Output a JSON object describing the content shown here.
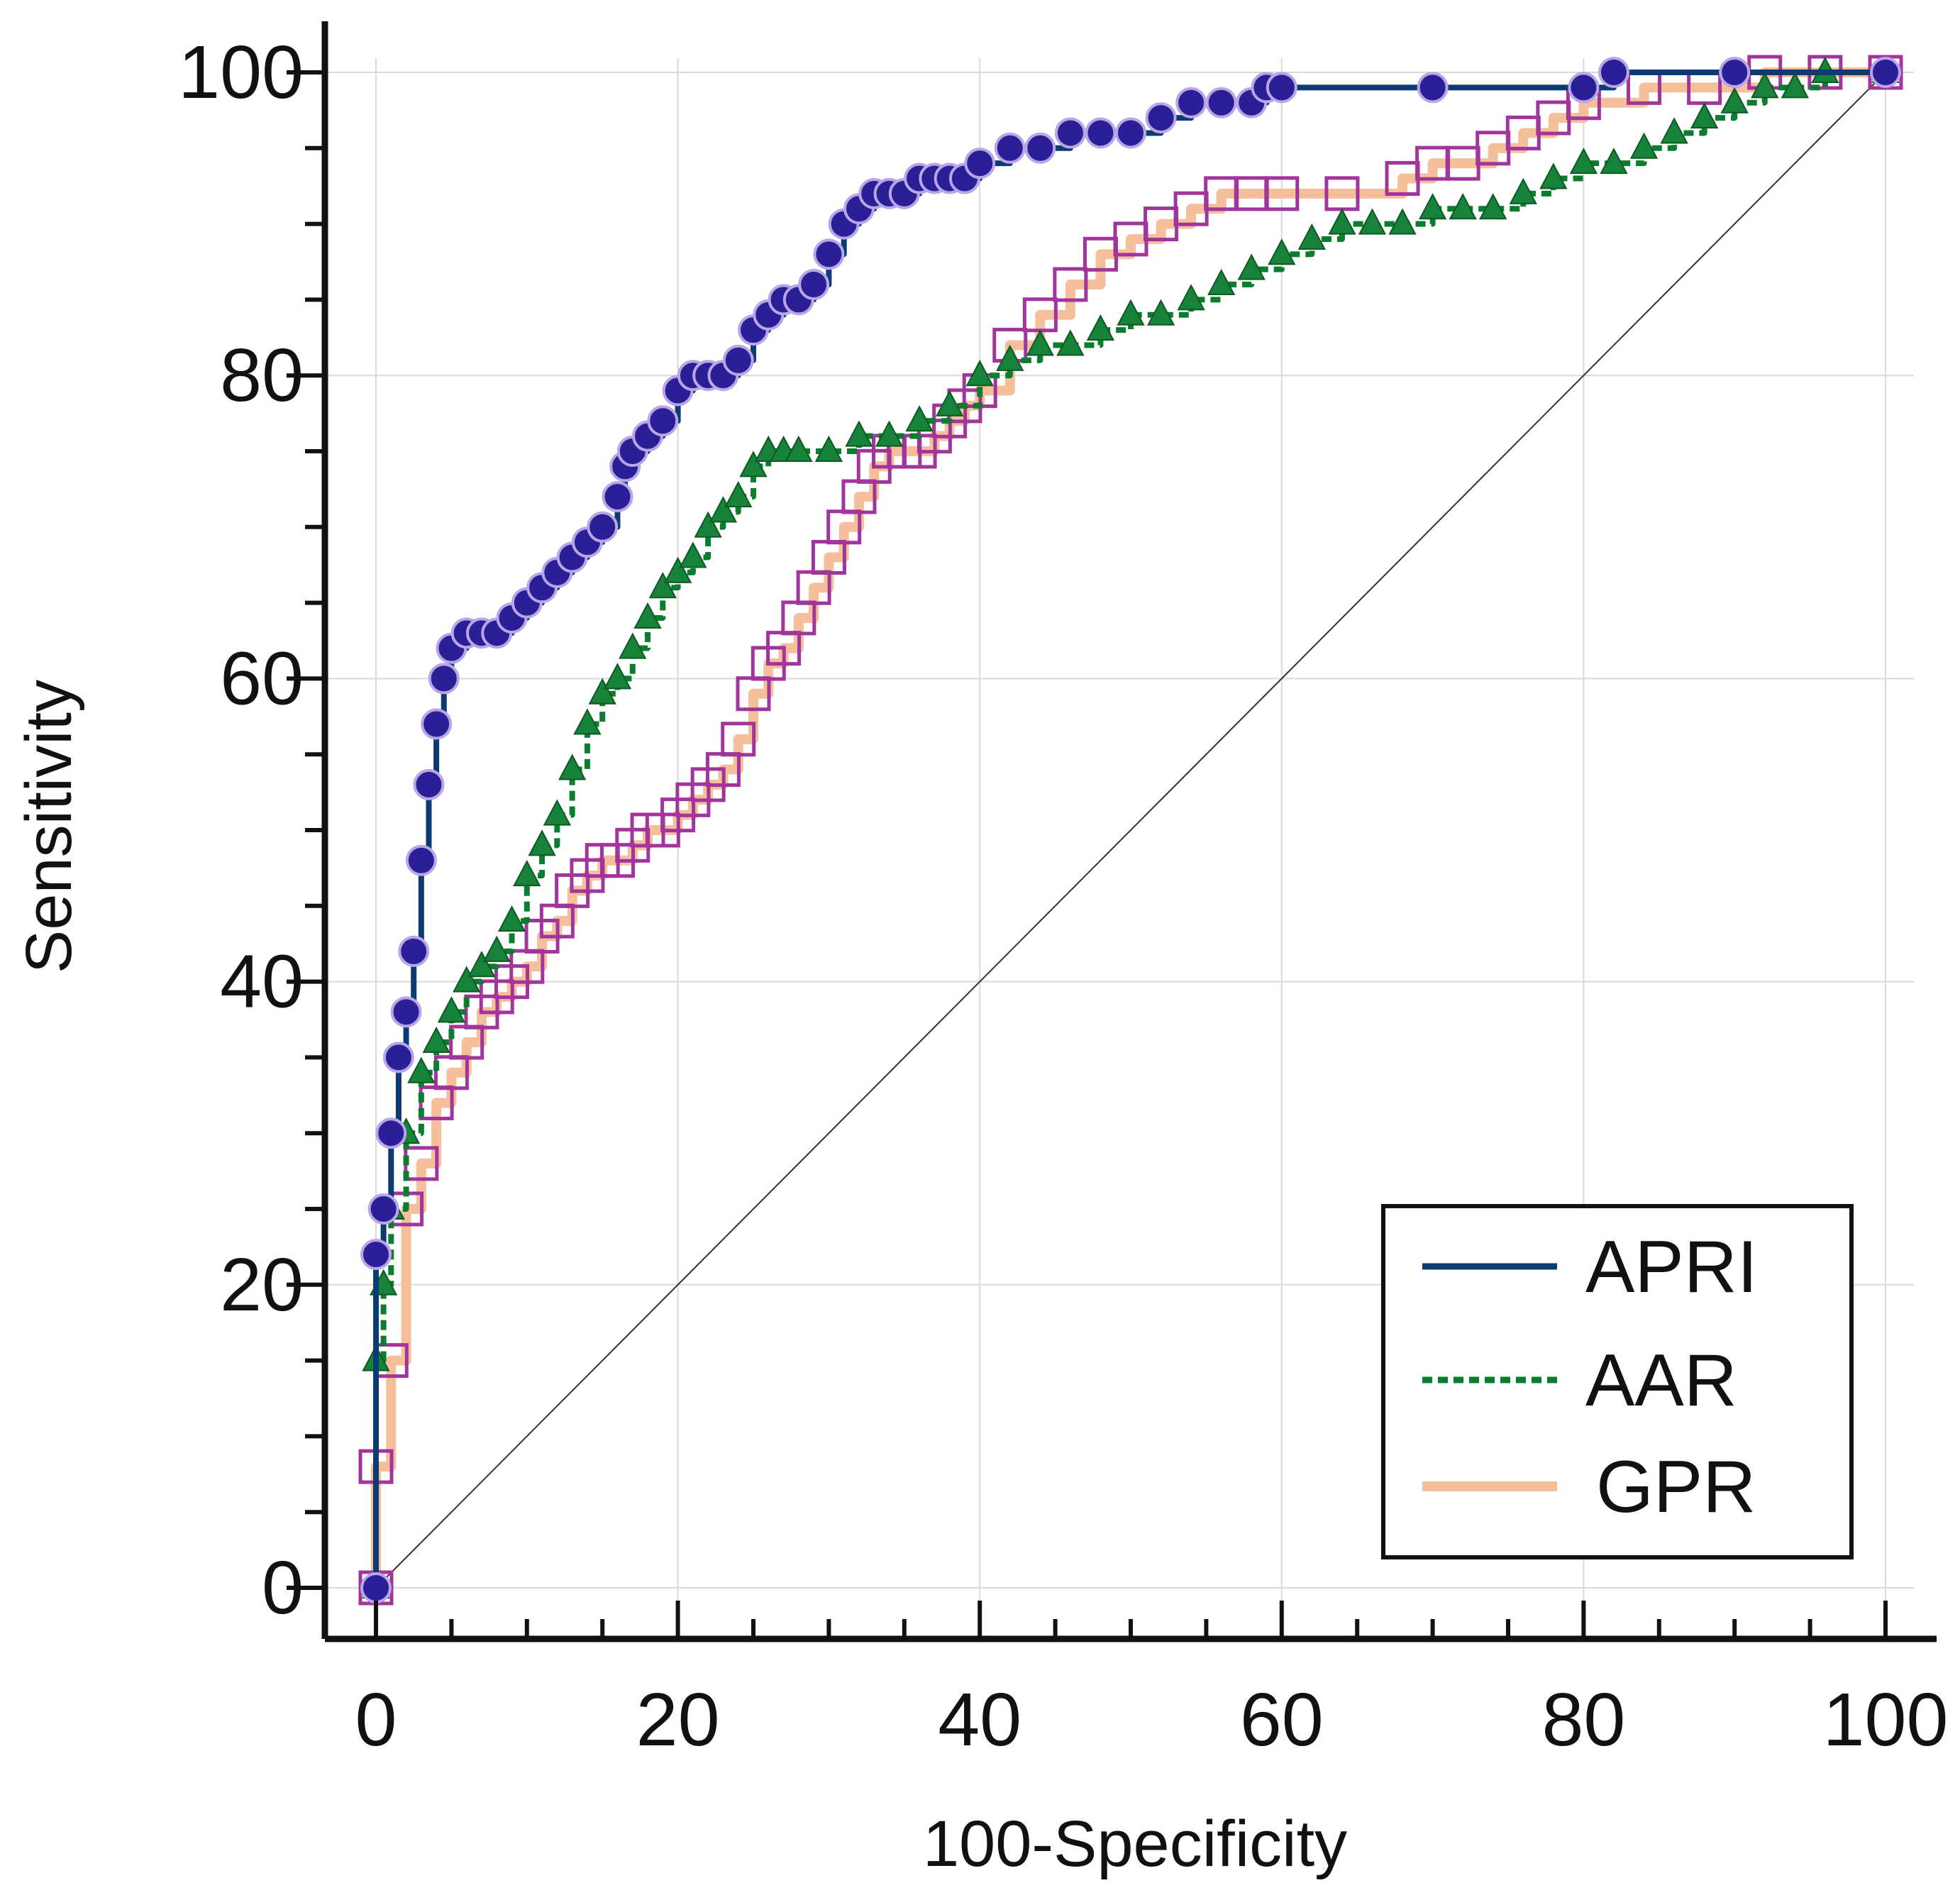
{
  "chart_data": {
    "type": "line",
    "title": "",
    "xlabel": "100-Specificity",
    "ylabel": "Sensitivity",
    "xlim": [
      0,
      100
    ],
    "ylim": [
      0,
      100
    ],
    "xticks": [
      "0",
      "20",
      "40",
      "60",
      "80",
      "100"
    ],
    "yticks": [
      "0",
      "20",
      "40",
      "60",
      "80",
      "100"
    ],
    "grid": true,
    "legend_position": "bottom-right",
    "reference_line": {
      "x": [
        0,
        100
      ],
      "y": [
        0,
        100
      ],
      "color": "#333333"
    },
    "series": [
      {
        "name": "APRI",
        "color": "#0c3a72",
        "marker_color": "#2a1f96",
        "marker": "circle",
        "line_style": "solid",
        "x": [
          0,
          0,
          0.5,
          1,
          1.5,
          2,
          2.5,
          3,
          3.5,
          4,
          4.5,
          5,
          6,
          7,
          8,
          9,
          10,
          11,
          12,
          13,
          14,
          15,
          16,
          16.5,
          17,
          18,
          19,
          20,
          21,
          22,
          23,
          24,
          25,
          26,
          27,
          28,
          29,
          30,
          31,
          32,
          33,
          34,
          35,
          36,
          37,
          38,
          39,
          40,
          42,
          44,
          46,
          48,
          50,
          52,
          54,
          56,
          58,
          59,
          60,
          70,
          80,
          82,
          90,
          100
        ],
        "y": [
          0,
          22,
          25,
          30,
          35,
          38,
          42,
          48,
          53,
          57,
          60,
          62,
          63,
          63,
          63,
          64,
          65,
          66,
          67,
          68,
          69,
          70,
          72,
          74,
          75,
          76,
          77,
          79,
          80,
          80,
          80,
          81,
          83,
          84,
          85,
          85,
          86,
          88,
          90,
          91,
          92,
          92,
          92,
          93,
          93,
          93,
          93,
          94,
          95,
          95,
          96,
          96,
          96,
          97,
          98,
          98,
          98,
          99,
          99,
          99,
          99,
          100,
          100,
          100
        ]
      },
      {
        "name": "AAR",
        "color": "#0b7d2e",
        "marker_color": "#16823a",
        "marker": "triangle",
        "line_style": "dashed",
        "x": [
          0,
          0,
          0.5,
          1,
          2,
          3,
          4,
          5,
          6,
          7,
          8,
          9,
          10,
          11,
          12,
          13,
          14,
          15,
          16,
          17,
          18,
          19,
          20,
          21,
          22,
          23,
          24,
          25,
          26,
          27,
          28,
          30,
          32,
          34,
          36,
          38,
          40,
          42,
          44,
          46,
          48,
          50,
          52,
          54,
          56,
          58,
          60,
          62,
          64,
          66,
          68,
          70,
          72,
          74,
          76,
          78,
          80,
          82,
          84,
          86,
          88,
          90,
          92,
          94,
          96,
          100
        ],
        "y": [
          0,
          15,
          20,
          25,
          30,
          34,
          36,
          38,
          40,
          41,
          42,
          44,
          47,
          49,
          51,
          54,
          57,
          59,
          60,
          62,
          64,
          66,
          67,
          68,
          70,
          71,
          72,
          74,
          75,
          75,
          75,
          75,
          76,
          76,
          77,
          78,
          80,
          81,
          82,
          82,
          83,
          84,
          84,
          85,
          86,
          87,
          88,
          89,
          90,
          90,
          90,
          91,
          91,
          91,
          92,
          93,
          94,
          94,
          95,
          96,
          97,
          98,
          99,
          99,
          100,
          100
        ]
      },
      {
        "name": "GPR",
        "color": "#f4bf9a",
        "marker_color": "#a2359c",
        "marker": "square",
        "line_style": "solid",
        "x": [
          0,
          0,
          1,
          2,
          3,
          4,
          5,
          6,
          7,
          8,
          9,
          10,
          11,
          12,
          13,
          14,
          15,
          16,
          17,
          18,
          19,
          20,
          21,
          22,
          23,
          24,
          25,
          26,
          27,
          28,
          29,
          30,
          31,
          32,
          33,
          34,
          35,
          36,
          37,
          38,
          39,
          40,
          42,
          44,
          46,
          48,
          50,
          52,
          54,
          56,
          58,
          60,
          64,
          68,
          70,
          72,
          74,
          76,
          78,
          80,
          84,
          88,
          92,
          96,
          100
        ],
        "y": [
          0,
          8,
          15,
          25,
          28,
          32,
          34,
          36,
          38,
          39,
          40,
          41,
          43,
          44,
          46,
          47,
          48,
          48,
          49,
          50,
          50,
          51,
          52,
          53,
          54,
          56,
          59,
          61,
          62,
          64,
          66,
          68,
          70,
          72,
          74,
          75,
          75,
          75,
          76,
          77,
          78,
          79,
          82,
          84,
          86,
          88,
          89,
          90,
          91,
          92,
          92,
          92,
          92,
          93,
          94,
          94,
          95,
          96,
          97,
          98,
          99,
          99,
          100,
          100,
          100
        ]
      }
    ]
  }
}
